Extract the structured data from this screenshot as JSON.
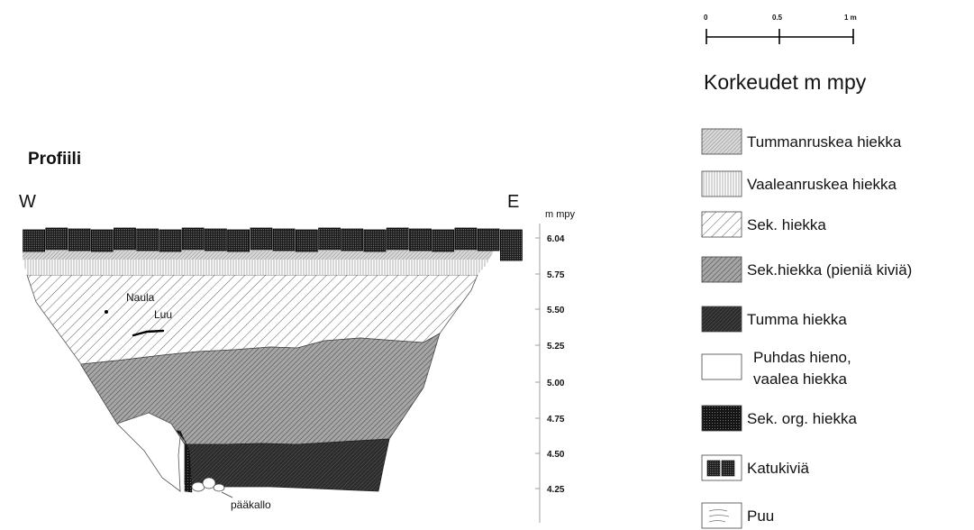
{
  "title": "Profiili",
  "directions": {
    "west": "W",
    "east": "E"
  },
  "elevation_axis": {
    "unit": "m mpy",
    "ticks": [
      "6.04",
      "5.75",
      "5.50",
      "5.25",
      "5.00",
      "4.75",
      "4.50",
      "4.25"
    ]
  },
  "annotations": {
    "nail": "Naula",
    "bone": "Luu",
    "skull": "pääkallo"
  },
  "scale_bar": {
    "labels": [
      "0",
      "0.5",
      "1 m"
    ]
  },
  "legend": {
    "title": "Korkeudet m mpy",
    "items": [
      {
        "label": "Tummanruskea hiekka",
        "pattern": "dark-brown-sand"
      },
      {
        "label": "Vaaleanruskea hiekka",
        "pattern": "light-brown-sand"
      },
      {
        "label": "Sek. hiekka",
        "pattern": "mixed-sand"
      },
      {
        "label": "Sek.hiekka (pieniä kiviä)",
        "pattern": "mixed-sand-small-stones"
      },
      {
        "label": "Tumma hiekka",
        "pattern": "dark-sand"
      },
      {
        "label": "Puhdas hieno,",
        "label2": "vaalea hiekka",
        "pattern": "clean-fine-sand"
      },
      {
        "label": "Sek. org. hiekka",
        "pattern": "mixed-organic-sand"
      },
      {
        "label": "Katukiviä",
        "pattern": "cobblestones"
      },
      {
        "label": "Puu",
        "pattern": "wood"
      }
    ]
  }
}
